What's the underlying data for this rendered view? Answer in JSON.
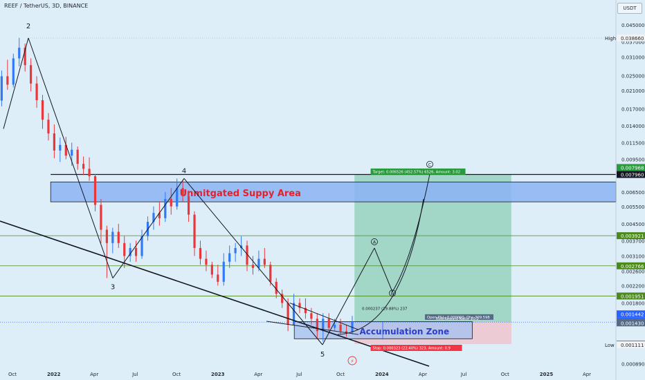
{
  "chart_data": {
    "type": "candlestick",
    "title": "REEF / TetherUS, 3D, BINANCE",
    "quote_unit": "USDT",
    "y_scale": "log",
    "ylim": [
      0.00075,
      0.06
    ],
    "y_ticks": [
      "0.045000",
      "0.037000",
      "0.031000",
      "0.025000",
      "0.021000",
      "0.017000",
      "0.014000",
      "0.011500",
      "0.009500",
      "0.006500",
      "0.005500",
      "0.004500",
      "0.003700",
      "0.003100",
      "0.002600",
      "0.002200",
      "0.001800",
      "0.000890"
    ],
    "x_ticks": [
      "Oct",
      "2022",
      "Apr",
      "Jul",
      "Oct",
      "2023",
      "Apr",
      "Jul",
      "Oct",
      "2024",
      "Apr",
      "Jul",
      "Oct",
      "2025",
      "Apr"
    ],
    "price_labels": [
      {
        "label": "High",
        "value": "0.038660",
        "color": "#f2f2f2",
        "text": "#23282e"
      },
      {
        "label": "",
        "value": "0.007968",
        "color": "#289b3c",
        "text": "#ffffff"
      },
      {
        "label": "",
        "value": "0.007960",
        "color": "#131722",
        "text": "#ffffff"
      },
      {
        "label": "",
        "value": "0.003921",
        "color": "#4c8a1c",
        "text": "#ffffff"
      },
      {
        "label": "",
        "value": "0.002766",
        "color": "#4c8a1c",
        "text": "#ffffff"
      },
      {
        "label": "",
        "value": "0.001951",
        "color": "#4c8a1c",
        "text": "#ffffff"
      },
      {
        "label": "",
        "value": "0.001442",
        "color": "#2962ff",
        "text": "#ffffff"
      },
      {
        "label": "",
        "value": "1d 21h",
        "color": "#2962ff",
        "text": "#ffffff"
      },
      {
        "label": "",
        "value": "0.001442",
        "color": "#546a86",
        "text": "#ffffff"
      },
      {
        "label": "",
        "value": "0.001430",
        "color": "#546a86",
        "text": "#ffffff"
      },
      {
        "label": "",
        "value": "0.001119",
        "color": "#f23645",
        "text": "#ffffff"
      },
      {
        "label": "Low",
        "value": "0.001111",
        "color": "#f2f2f2",
        "text": "#23282e"
      }
    ],
    "zones": {
      "supply": "Unmitgated Suppy Area",
      "accumulation": "Accumulation Zone"
    },
    "wave_labels": [
      "2",
      "3",
      "4",
      "5"
    ],
    "scenario_points": [
      "A",
      "B",
      "C"
    ],
    "position": {
      "target": "Target: 0.006526 (452.57%) 6526, Amount: 3.02",
      "stop": "Stop: 0.000323 (22.40%) 323, Amount: 0.9",
      "open_pl": "Open P&L: 0.000000, Qty: 309.598",
      "risk_reward": "Risk/Reward Ratio: 20.2",
      "move": "0.000237 (19.88%) 237"
    },
    "colors": {
      "background": "#ddeef8",
      "up": "#3179f5",
      "down": "#e8363b",
      "supply_zone": "#8cb4f5",
      "profit_zone": "#98d2c0",
      "loss_zone": "#eec6cf"
    },
    "candles": [
      {
        "d": "2021-08-25",
        "o": 0.0172,
        "h": 0.0203,
        "l": 0.0152,
        "c": 0.0187
      },
      {
        "d": "2021-09-07",
        "o": 0.0187,
        "h": 0.0265,
        "l": 0.0175,
        "c": 0.0248
      },
      {
        "d": "2021-09-20",
        "o": 0.0248,
        "h": 0.03,
        "l": 0.0212,
        "c": 0.0225
      },
      {
        "d": "2021-10-03",
        "o": 0.0225,
        "h": 0.0322,
        "l": 0.0218,
        "c": 0.0305
      },
      {
        "d": "2021-10-16",
        "o": 0.0305,
        "h": 0.0387,
        "l": 0.0278,
        "c": 0.0345
      },
      {
        "d": "2021-10-29",
        "o": 0.0345,
        "h": 0.0362,
        "l": 0.0262,
        "c": 0.0282
      },
      {
        "d": "2021-11-11",
        "o": 0.0282,
        "h": 0.0305,
        "l": 0.0208,
        "c": 0.0228
      },
      {
        "d": "2021-11-24",
        "o": 0.0228,
        "h": 0.0248,
        "l": 0.0172,
        "c": 0.0188
      },
      {
        "d": "2021-12-07",
        "o": 0.0188,
        "h": 0.02,
        "l": 0.0135,
        "c": 0.015
      },
      {
        "d": "2021-12-20",
        "o": 0.015,
        "h": 0.0162,
        "l": 0.0118,
        "c": 0.0128
      },
      {
        "d": "2022-01-02",
        "o": 0.0128,
        "h": 0.0142,
        "l": 0.0096,
        "c": 0.0105
      },
      {
        "d": "2022-01-15",
        "o": 0.0105,
        "h": 0.0122,
        "l": 0.0092,
        "c": 0.0112
      },
      {
        "d": "2022-01-28",
        "o": 0.0112,
        "h": 0.0123,
        "l": 0.0095,
        "c": 0.0099
      },
      {
        "d": "2022-02-10",
        "o": 0.0099,
        "h": 0.0115,
        "l": 0.0088,
        "c": 0.0106
      },
      {
        "d": "2022-02-23",
        "o": 0.0106,
        "h": 0.011,
        "l": 0.0084,
        "c": 0.009
      },
      {
        "d": "2022-03-08",
        "o": 0.009,
        "h": 0.0098,
        "l": 0.0079,
        "c": 0.0085
      },
      {
        "d": "2022-03-21",
        "o": 0.0085,
        "h": 0.0097,
        "l": 0.0074,
        "c": 0.0078
      },
      {
        "d": "2022-04-03",
        "o": 0.0078,
        "h": 0.008,
        "l": 0.0052,
        "c": 0.0056
      },
      {
        "d": "2022-04-16",
        "o": 0.0056,
        "h": 0.006,
        "l": 0.0036,
        "c": 0.0042
      },
      {
        "d": "2022-04-29",
        "o": 0.0042,
        "h": 0.0044,
        "l": 0.0024,
        "c": 0.0036
      },
      {
        "d": "2022-05-12",
        "o": 0.0036,
        "h": 0.0043,
        "l": 0.0032,
        "c": 0.0041
      },
      {
        "d": "2022-05-25",
        "o": 0.0041,
        "h": 0.0045,
        "l": 0.0034,
        "c": 0.0036
      },
      {
        "d": "2022-06-07",
        "o": 0.0036,
        "h": 0.0039,
        "l": 0.0027,
        "c": 0.0031
      },
      {
        "d": "2022-06-20",
        "o": 0.0031,
        "h": 0.0036,
        "l": 0.0029,
        "c": 0.0034
      },
      {
        "d": "2022-07-03",
        "o": 0.0034,
        "h": 0.0037,
        "l": 0.0029,
        "c": 0.0031
      },
      {
        "d": "2022-07-16",
        "o": 0.0031,
        "h": 0.0042,
        "l": 0.003,
        "c": 0.0039
      },
      {
        "d": "2022-07-29",
        "o": 0.0039,
        "h": 0.0049,
        "l": 0.0037,
        "c": 0.0046
      },
      {
        "d": "2022-08-11",
        "o": 0.0046,
        "h": 0.0055,
        "l": 0.0042,
        "c": 0.0051
      },
      {
        "d": "2022-08-24",
        "o": 0.0051,
        "h": 0.0058,
        "l": 0.0044,
        "c": 0.0048
      },
      {
        "d": "2022-09-06",
        "o": 0.0048,
        "h": 0.0065,
        "l": 0.0046,
        "c": 0.006
      },
      {
        "d": "2022-09-19",
        "o": 0.006,
        "h": 0.0068,
        "l": 0.005,
        "c": 0.0055
      },
      {
        "d": "2022-10-02",
        "o": 0.0055,
        "h": 0.0076,
        "l": 0.0053,
        "c": 0.0068
      },
      {
        "d": "2022-10-15",
        "o": 0.0068,
        "h": 0.0074,
        "l": 0.0058,
        "c": 0.0062
      },
      {
        "d": "2022-10-28",
        "o": 0.0062,
        "h": 0.0066,
        "l": 0.0046,
        "c": 0.005
      },
      {
        "d": "2022-11-10",
        "o": 0.005,
        "h": 0.0052,
        "l": 0.0031,
        "c": 0.0034
      },
      {
        "d": "2022-11-23",
        "o": 0.0034,
        "h": 0.0037,
        "l": 0.0028,
        "c": 0.003
      },
      {
        "d": "2022-12-06",
        "o": 0.003,
        "h": 0.0033,
        "l": 0.0026,
        "c": 0.0028
      },
      {
        "d": "2022-12-19",
        "o": 0.0028,
        "h": 0.0029,
        "l": 0.0024,
        "c": 0.0025
      },
      {
        "d": "2023-01-01",
        "o": 0.0025,
        "h": 0.0028,
        "l": 0.0022,
        "c": 0.0023
      },
      {
        "d": "2023-01-14",
        "o": 0.0023,
        "h": 0.0032,
        "l": 0.0022,
        "c": 0.0029
      },
      {
        "d": "2023-01-27",
        "o": 0.0029,
        "h": 0.0035,
        "l": 0.0027,
        "c": 0.0032
      },
      {
        "d": "2023-02-09",
        "o": 0.0032,
        "h": 0.0036,
        "l": 0.0029,
        "c": 0.0034
      },
      {
        "d": "2023-02-22",
        "o": 0.0034,
        "h": 0.0039,
        "l": 0.0031,
        "c": 0.0035
      },
      {
        "d": "2023-03-07",
        "o": 0.0035,
        "h": 0.0037,
        "l": 0.0026,
        "c": 0.0028
      },
      {
        "d": "2023-03-20",
        "o": 0.0028,
        "h": 0.0031,
        "l": 0.0025,
        "c": 0.0027
      },
      {
        "d": "2023-04-02",
        "o": 0.0027,
        "h": 0.0033,
        "l": 0.0026,
        "c": 0.003
      },
      {
        "d": "2023-04-15",
        "o": 0.003,
        "h": 0.0034,
        "l": 0.0027,
        "c": 0.0028
      },
      {
        "d": "2023-04-28",
        "o": 0.0028,
        "h": 0.0029,
        "l": 0.0022,
        "c": 0.0023
      },
      {
        "d": "2023-05-11",
        "o": 0.0023,
        "h": 0.0024,
        "l": 0.0019,
        "c": 0.002
      },
      {
        "d": "2023-05-24",
        "o": 0.002,
        "h": 0.0021,
        "l": 0.0017,
        "c": 0.0018
      },
      {
        "d": "2023-06-06",
        "o": 0.0018,
        "h": 0.0019,
        "l": 0.0013,
        "c": 0.0014
      },
      {
        "d": "2023-06-19",
        "o": 0.0014,
        "h": 0.002,
        "l": 0.0014,
        "c": 0.0018
      },
      {
        "d": "2023-07-02",
        "o": 0.0018,
        "h": 0.0019,
        "l": 0.0016,
        "c": 0.0017
      },
      {
        "d": "2023-07-15",
        "o": 0.0017,
        "h": 0.0019,
        "l": 0.0015,
        "c": 0.0016
      },
      {
        "d": "2023-07-28",
        "o": 0.0016,
        "h": 0.0017,
        "l": 0.0014,
        "c": 0.0015
      },
      {
        "d": "2023-08-10",
        "o": 0.0015,
        "h": 0.0016,
        "l": 0.0012,
        "c": 0.0013
      },
      {
        "d": "2023-08-23",
        "o": 0.0013,
        "h": 0.0016,
        "l": 0.00115,
        "c": 0.0015
      },
      {
        "d": "2023-09-05",
        "o": 0.0015,
        "h": 0.0016,
        "l": 0.0013,
        "c": 0.00135
      },
      {
        "d": "2023-09-18",
        "o": 0.00135,
        "h": 0.0015,
        "l": 0.0013,
        "c": 0.0014
      },
      {
        "d": "2023-10-01",
        "o": 0.0014,
        "h": 0.0015,
        "l": 0.00125,
        "c": 0.0013
      },
      {
        "d": "2023-10-14",
        "o": 0.0013,
        "h": 0.0014,
        "l": 0.00122,
        "c": 0.00128
      },
      {
        "d": "2023-10-27",
        "o": 0.00128,
        "h": 0.00155,
        "l": 0.00125,
        "c": 0.001442
      }
    ]
  }
}
